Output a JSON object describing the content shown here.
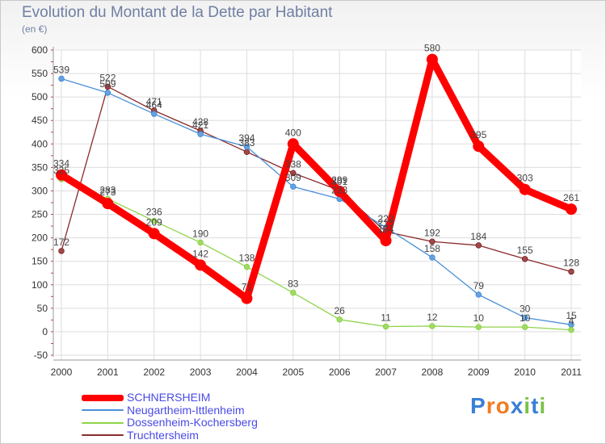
{
  "title": "Evolution du Montant de la Dette par Habitant",
  "subtitle": "(en €)",
  "logo": {
    "letters": [
      "P",
      "r",
      "o",
      "x",
      "i",
      "t",
      "i"
    ],
    "colors": [
      "#3a7fd6",
      "#ee7d22",
      "#ee7d22",
      "#3a7fd6",
      "#7cc24a",
      "#3a7fd6",
      "#7cc24a"
    ]
  },
  "chart_data": {
    "type": "line",
    "title": "Evolution du Montant de la Dette par Habitant",
    "ylabel": "(en €)",
    "xlabel": "",
    "x": [
      "2000",
      "2001",
      "2002",
      "2003",
      "2004",
      "2005",
      "2006",
      "2007",
      "2008",
      "2009",
      "2010",
      "2011"
    ],
    "ylim": [
      -50,
      600
    ],
    "yticks": [
      -50,
      0,
      50,
      100,
      150,
      200,
      250,
      300,
      350,
      400,
      450,
      500,
      550,
      600
    ],
    "grid": true,
    "legend": "bottom-left",
    "series": [
      {
        "name": "Truchtersheim",
        "color": "#8b2a2a",
        "values": [
          172,
          522,
          471,
          428,
          383,
          338,
          301,
          213,
          192,
          184,
          155,
          128
        ],
        "labels": [
          "172",
          "522",
          "471",
          "428",
          "383",
          "338",
          "301",
          "213",
          "192",
          "184",
          "155",
          "128"
        ]
      },
      {
        "name": "Neugartheim-Ittlenheim",
        "color": "#4a90d9",
        "values": [
          539,
          509,
          464,
          421,
          394,
          309,
          283,
          222,
          158,
          79,
          30,
          15
        ],
        "labels": [
          "539",
          "509",
          "464",
          "421",
          "394",
          "309",
          "283",
          "222",
          "158",
          "79",
          "30",
          "15"
        ]
      },
      {
        "name": "Dossenheim-Kochersberg",
        "color": "#8fd44a",
        "values": [
          325,
          283,
          236,
          190,
          138,
          83,
          26,
          11,
          12,
          10,
          10,
          4
        ],
        "labels": [
          "325",
          "283",
          "236",
          "190",
          "138",
          "83",
          "26",
          "11",
          "12",
          "10",
          "10",
          "4"
        ]
      },
      {
        "name": "SCHNERSHEIM",
        "color": "#ff0000",
        "values": [
          334,
          273,
          209,
          142,
          71,
          400,
          299,
          194,
          580,
          395,
          303,
          261
        ],
        "labels": [
          "334",
          "273",
          "209",
          "142",
          "71",
          "400",
          "299",
          "194",
          "580",
          "395",
          "303",
          "261"
        ]
      }
    ],
    "legend_order": [
      "SCHNERSHEIM",
      "Neugartheim-Ittlenheim",
      "Dossenheim-Kochersberg",
      "Truchtersheim"
    ]
  }
}
